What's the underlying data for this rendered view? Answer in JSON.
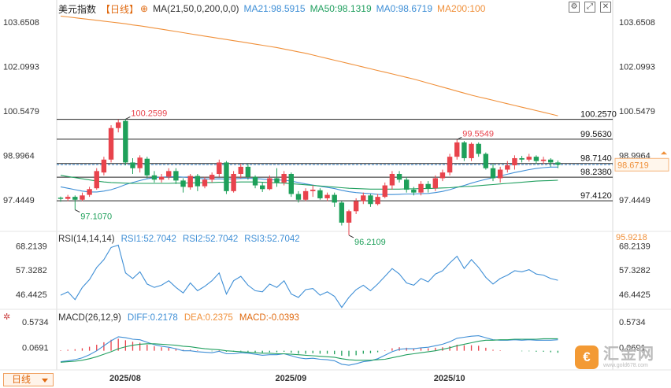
{
  "header": {
    "symbol": "美元指数",
    "period_tag": "【日线】",
    "ma_params": "MA(21,50,0,200,0,0)",
    "ma21": "MA21:98.5915",
    "ma50": "MA50:98.1319",
    "ma0": "MA0:98.6719",
    "ma200": "MA200:100"
  },
  "rsi_header": {
    "name": "RSI(14,14,14)",
    "rsi1": "RSI1:52.7042",
    "rsi2": "RSI2:52.7042",
    "rsi3": "RSI3:52.7042"
  },
  "macd_header": {
    "name": "MACD(26,12,9)",
    "diff": "DIFF:0.2178",
    "dea": "DEA:0.2375",
    "macd": "MACD:-0.0393"
  },
  "period_button": "日线",
  "watermark": {
    "name": "汇金网",
    "url": "www.gold678.com"
  },
  "colors": {
    "up": "#e8434c",
    "down": "#1ea05a",
    "ma21": "#3f8fd6",
    "ma50": "#22a060",
    "ma200": "#f0903a",
    "orange_label": "#f0903a",
    "accent": "#e06a10"
  },
  "icons": [
    "settings-icon",
    "fullscreen-icon",
    "close-icon",
    "gear-icon"
  ],
  "chart_data": [
    {
      "type": "candlestick",
      "title": "美元指数 日线",
      "ylim": [
        96.4,
        104.2
      ],
      "y_ticks": [
        "103.6508",
        "102.0993",
        "100.5479",
        "98.9964",
        "97.4449"
      ],
      "x_labels": [
        {
          "index": 7,
          "label": "2025/08"
        },
        {
          "index": 30,
          "label": "2025/09"
        },
        {
          "index": 52,
          "label": "2025/10"
        }
      ],
      "candles": [
        [
          97.52,
          97.48,
          97.56,
          97.38
        ],
        [
          97.48,
          97.55,
          97.62,
          97.4
        ],
        [
          97.55,
          97.45,
          97.6,
          97.1
        ],
        [
          97.45,
          97.6,
          97.7,
          97.4
        ],
        [
          97.62,
          97.82,
          97.9,
          97.55
        ],
        [
          97.85,
          98.45,
          98.55,
          97.8
        ],
        [
          98.4,
          98.85,
          98.95,
          98.3
        ],
        [
          98.85,
          99.95,
          100.05,
          98.75
        ],
        [
          99.95,
          100.15,
          100.25,
          99.8
        ],
        [
          100.2,
          98.75,
          100.26,
          98.65
        ],
        [
          98.75,
          98.55,
          98.9,
          98.35
        ],
        [
          98.55,
          98.92,
          99.0,
          98.4
        ],
        [
          98.88,
          98.3,
          98.95,
          98.2
        ],
        [
          98.3,
          98.15,
          98.45,
          98.05
        ],
        [
          98.15,
          98.25,
          98.35,
          98.05
        ],
        [
          98.25,
          98.45,
          98.55,
          98.15
        ],
        [
          98.45,
          98.12,
          98.55,
          98.0
        ],
        [
          98.12,
          97.9,
          98.2,
          97.7
        ],
        [
          97.88,
          98.28,
          98.35,
          97.8
        ],
        [
          98.28,
          97.92,
          98.35,
          97.75
        ],
        [
          97.92,
          98.15,
          98.25,
          97.85
        ],
        [
          98.15,
          98.32,
          98.4,
          98.05
        ],
        [
          98.35,
          98.75,
          98.85,
          98.25
        ],
        [
          98.75,
          97.75,
          98.8,
          97.65
        ],
        [
          97.75,
          98.35,
          98.45,
          97.7
        ],
        [
          98.35,
          98.6,
          98.7,
          98.2
        ],
        [
          98.6,
          98.25,
          98.7,
          98.15
        ],
        [
          98.25,
          97.95,
          98.3,
          97.85
        ],
        [
          97.95,
          97.82,
          98.05,
          97.72
        ],
        [
          97.82,
          98.2,
          98.3,
          97.78
        ],
        [
          98.2,
          98.05,
          98.55,
          97.9
        ],
        [
          98.05,
          98.35,
          98.45,
          97.95
        ],
        [
          98.35,
          97.65,
          98.4,
          97.55
        ],
        [
          97.65,
          97.45,
          97.75,
          97.35
        ],
        [
          97.45,
          97.75,
          97.85,
          97.4
        ],
        [
          97.75,
          97.8,
          97.95,
          97.55
        ],
        [
          97.78,
          97.5,
          97.85,
          97.45
        ],
        [
          97.5,
          97.62,
          97.7,
          97.4
        ],
        [
          97.62,
          97.35,
          97.7,
          97.2
        ],
        [
          97.35,
          96.65,
          97.4,
          96.55
        ],
        [
          96.65,
          97.05,
          97.1,
          96.21
        ],
        [
          97.05,
          97.4,
          97.5,
          96.95
        ],
        [
          97.4,
          97.6,
          97.7,
          97.3
        ],
        [
          97.6,
          97.3,
          97.65,
          97.2
        ],
        [
          97.3,
          97.55,
          97.65,
          97.25
        ],
        [
          97.55,
          97.95,
          98.05,
          97.5
        ],
        [
          97.95,
          98.35,
          98.45,
          97.8
        ],
        [
          98.35,
          98.15,
          98.45,
          98.05
        ],
        [
          98.15,
          97.8,
          98.25,
          97.7
        ],
        [
          97.8,
          97.7,
          97.9,
          97.6
        ],
        [
          97.7,
          98.0,
          98.1,
          97.6
        ],
        [
          98.0,
          97.85,
          98.1,
          97.7
        ],
        [
          97.85,
          98.2,
          98.3,
          97.75
        ],
        [
          98.2,
          98.4,
          98.5,
          98.1
        ],
        [
          98.4,
          98.95,
          99.05,
          98.3
        ],
        [
          98.95,
          99.45,
          99.55,
          98.85
        ],
        [
          99.45,
          98.9,
          99.5,
          98.8
        ],
        [
          98.9,
          99.4,
          99.45,
          98.8
        ],
        [
          99.4,
          99.05,
          99.45,
          98.95
        ],
        [
          99.05,
          98.55,
          99.1,
          98.5
        ],
        [
          98.55,
          98.2,
          98.7,
          98.1
        ],
        [
          98.2,
          98.5,
          98.6,
          98.05
        ],
        [
          98.5,
          98.65,
          98.8,
          98.4
        ],
        [
          98.65,
          98.9,
          99.0,
          98.5
        ],
        [
          98.9,
          98.85,
          98.98,
          98.75
        ],
        [
          98.85,
          98.95,
          99.05,
          98.78
        ],
        [
          98.95,
          98.8,
          99.0,
          98.7
        ],
        [
          98.8,
          98.85,
          98.95,
          98.7
        ],
        [
          98.85,
          98.75,
          98.9,
          98.6
        ],
        [
          98.75,
          98.67,
          98.82,
          98.55
        ]
      ],
      "candle_order": "open, close, high, low",
      "series": [
        {
          "name": "MA21",
          "values": [
            97.9,
            97.85,
            97.8,
            97.75,
            97.72,
            97.72,
            97.75,
            97.8,
            97.88,
            97.98,
            98.05,
            98.12,
            98.18,
            98.22,
            98.24,
            98.25,
            98.25,
            98.24,
            98.22,
            98.2,
            98.18,
            98.17,
            98.18,
            98.17,
            98.18,
            98.19,
            98.2,
            98.19,
            98.17,
            98.15,
            98.14,
            98.13,
            98.1,
            98.05,
            98.0,
            97.96,
            97.92,
            97.88,
            97.84,
            97.78,
            97.73,
            97.7,
            97.68,
            97.66,
            97.64,
            97.63,
            97.63,
            97.64,
            97.65,
            97.65,
            97.66,
            97.67,
            97.7,
            97.74,
            97.8,
            97.88,
            97.95,
            98.03,
            98.1,
            98.16,
            98.22,
            98.28,
            98.34,
            98.4,
            98.45,
            98.5,
            98.54,
            98.57,
            98.59,
            98.59
          ]
        },
        {
          "name": "MA50",
          "values": [
            98.3,
            98.26,
            98.22,
            98.18,
            98.14,
            98.1,
            98.07,
            98.05,
            98.04,
            98.03,
            98.02,
            98.02,
            98.02,
            98.02,
            98.02,
            98.02,
            98.03,
            98.03,
            98.04,
            98.04,
            98.05,
            98.05,
            98.06,
            98.06,
            98.06,
            98.07,
            98.07,
            98.07,
            98.06,
            98.05,
            98.04,
            98.03,
            98.01,
            97.99,
            97.97,
            97.95,
            97.93,
            97.91,
            97.89,
            97.87,
            97.85,
            97.84,
            97.83,
            97.82,
            97.82,
            97.82,
            97.82,
            97.82,
            97.83,
            97.83,
            97.84,
            97.84,
            97.85,
            97.86,
            97.87,
            97.89,
            97.91,
            97.92,
            97.94,
            97.96,
            97.98,
            98.0,
            98.02,
            98.04,
            98.06,
            98.08,
            98.1,
            98.11,
            98.12,
            98.13
          ]
        },
        {
          "name": "MA200",
          "values": [
            103.86,
            103.83,
            103.8,
            103.77,
            103.74,
            103.71,
            103.68,
            103.65,
            103.62,
            103.59,
            103.55,
            103.52,
            103.48,
            103.44,
            103.4,
            103.36,
            103.32,
            103.28,
            103.24,
            103.2,
            103.16,
            103.12,
            103.08,
            103.04,
            103.0,
            102.96,
            102.92,
            102.88,
            102.84,
            102.8,
            102.76,
            102.71,
            102.66,
            102.61,
            102.56,
            102.5,
            102.44,
            102.38,
            102.32,
            102.26,
            102.2,
            102.14,
            102.08,
            102.02,
            101.96,
            101.9,
            101.84,
            101.78,
            101.72,
            101.66,
            101.59,
            101.52,
            101.45,
            101.38,
            101.31,
            101.24,
            101.17,
            101.1,
            101.04,
            100.98,
            100.92,
            100.86,
            100.8,
            100.74,
            100.68,
            100.62,
            100.56,
            100.5,
            100.44,
            100.38
          ]
        }
      ],
      "levels": [
        "100.2570",
        "99.5630",
        "98.7140",
        "98.2380",
        "97.4120"
      ],
      "annotations": [
        {
          "text": "100.2599",
          "index": 9
        },
        {
          "text": "99.5549",
          "index": 55
        },
        {
          "text": "97.1070",
          "index": 2
        },
        {
          "text": "96.2109",
          "index": 40
        }
      ],
      "current_value": "98.6719"
    },
    {
      "type": "line",
      "title": "RSI(14,14,14)",
      "ylim": [
        40,
        74
      ],
      "y_ticks": [
        "68.2139",
        "57.3282",
        "46.4425"
      ],
      "top_label": "95.9218",
      "series": [
        {
          "name": "RSI1",
          "values": [
            46.0,
            47.5,
            44.0,
            49.5,
            53.0,
            58.5,
            62.0,
            67.5,
            68.5,
            56.0,
            53.5,
            56.5,
            51.0,
            49.5,
            50.5,
            52.5,
            49.5,
            47.0,
            51.5,
            48.0,
            50.0,
            52.5,
            56.0,
            46.5,
            52.5,
            54.5,
            50.5,
            48.0,
            47.5,
            51.0,
            49.5,
            52.5,
            46.5,
            45.0,
            48.5,
            49.0,
            46.0,
            47.5,
            45.5,
            40.5,
            45.0,
            48.5,
            50.5,
            48.0,
            51.0,
            54.5,
            58.0,
            55.5,
            51.5,
            50.5,
            53.5,
            52.0,
            55.5,
            57.0,
            60.5,
            63.5,
            58.0,
            62.0,
            58.5,
            54.0,
            51.0,
            53.5,
            55.0,
            57.0,
            56.5,
            57.5,
            55.5,
            55.0,
            53.5,
            52.7
          ]
        }
      ]
    },
    {
      "type": "bar+line",
      "title": "MACD(26,12,9)",
      "ylim": [
        -0.32,
        0.75
      ],
      "y_ticks": [
        "0.5734",
        "0.0691"
      ],
      "macd": [
        0.01,
        0.02,
        0.03,
        0.05,
        0.08,
        0.12,
        0.17,
        0.22,
        0.24,
        0.21,
        0.18,
        0.16,
        0.12,
        0.09,
        0.07,
        0.06,
        0.04,
        0.02,
        0.02,
        0.01,
        0.0,
        -0.01,
        0.01,
        -0.02,
        -0.02,
        -0.01,
        -0.02,
        -0.03,
        -0.04,
        -0.03,
        -0.03,
        -0.02,
        -0.04,
        -0.06,
        -0.06,
        -0.05,
        -0.06,
        -0.06,
        -0.07,
        -0.1,
        -0.11,
        -0.09,
        -0.06,
        -0.05,
        -0.03,
        0.01,
        0.05,
        0.07,
        0.06,
        0.05,
        0.05,
        0.05,
        0.06,
        0.07,
        0.09,
        0.12,
        0.11,
        0.11,
        0.1,
        0.06,
        0.02,
        0.01,
        0.0,
        0.0,
        -0.01,
        -0.01,
        -0.02,
        -0.02,
        -0.03,
        -0.04
      ],
      "series": [
        {
          "name": "DIFF",
          "values": [
            -0.22,
            -0.2,
            -0.18,
            -0.14,
            -0.08,
            0.0,
            0.1,
            0.2,
            0.28,
            0.26,
            0.23,
            0.22,
            0.17,
            0.12,
            0.09,
            0.07,
            0.04,
            0.0,
            0.0,
            -0.02,
            -0.03,
            -0.04,
            -0.01,
            -0.06,
            -0.06,
            -0.04,
            -0.05,
            -0.07,
            -0.09,
            -0.08,
            -0.08,
            -0.06,
            -0.1,
            -0.14,
            -0.16,
            -0.15,
            -0.17,
            -0.18,
            -0.2,
            -0.27,
            -0.29,
            -0.26,
            -0.22,
            -0.2,
            -0.16,
            -0.09,
            -0.02,
            0.03,
            0.04,
            0.04,
            0.06,
            0.07,
            0.1,
            0.13,
            0.18,
            0.25,
            0.27,
            0.29,
            0.3,
            0.26,
            0.22,
            0.21,
            0.21,
            0.22,
            0.21,
            0.22,
            0.21,
            0.21,
            0.21,
            0.22
          ]
        },
        {
          "name": "DEA",
          "values": [
            -0.23,
            -0.22,
            -0.21,
            -0.19,
            -0.16,
            -0.12,
            -0.07,
            -0.02,
            0.04,
            0.08,
            0.11,
            0.13,
            0.14,
            0.14,
            0.13,
            0.12,
            0.11,
            0.09,
            0.08,
            0.06,
            0.04,
            0.03,
            0.02,
            0.0,
            -0.01,
            -0.02,
            -0.03,
            -0.04,
            -0.05,
            -0.05,
            -0.06,
            -0.06,
            -0.07,
            -0.08,
            -0.09,
            -0.1,
            -0.11,
            -0.12,
            -0.13,
            -0.16,
            -0.18,
            -0.19,
            -0.19,
            -0.19,
            -0.18,
            -0.17,
            -0.14,
            -0.11,
            -0.08,
            -0.06,
            -0.04,
            -0.02,
            0.0,
            0.03,
            0.06,
            0.1,
            0.13,
            0.16,
            0.19,
            0.21,
            0.21,
            0.22,
            0.22,
            0.23,
            0.23,
            0.23,
            0.23,
            0.24,
            0.24,
            0.24
          ]
        }
      ]
    }
  ]
}
